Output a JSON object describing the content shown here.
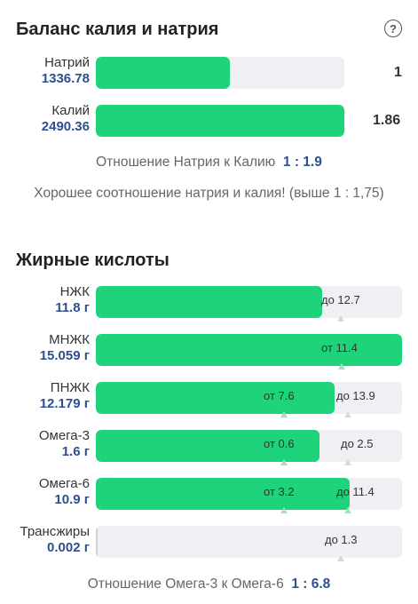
{
  "potassium_sodium": {
    "title": "Баланс калия и натрия",
    "help_glyph": "?",
    "rows": [
      {
        "name": "Натрий",
        "value": "1336.78",
        "right": "1",
        "fill_fraction": 0.54
      },
      {
        "name": "Калий",
        "value": "2490.36",
        "right": "1.86",
        "fill_fraction": 1.0
      }
    ],
    "ratio_label": "Отношение Натрия к Калию",
    "ratio_value": "1 : 1.9",
    "message": "Хорошее соотношение натрия и калия! (выше 1 : 1,75)"
  },
  "fatty_acids": {
    "title": "Жирные кислоты",
    "rows": [
      {
        "name": "НЖК",
        "value": "11.8 г",
        "fill_fraction": 0.74,
        "marks": [
          "до 12.7"
        ]
      },
      {
        "name": "МНЖК",
        "value": "15.059 г",
        "fill_fraction": 1.0,
        "marks": [
          "от 11.4"
        ]
      },
      {
        "name": "ПНЖК",
        "value": "12.179 г",
        "fill_fraction": 0.78,
        "marks": [
          "от 7.6",
          "до 13.9"
        ]
      },
      {
        "name": "Омега-3",
        "value": "1.6 г",
        "fill_fraction": 0.73,
        "marks": [
          "от 0.6",
          "до 2.5"
        ]
      },
      {
        "name": "Омега-6",
        "value": "10.9 г",
        "fill_fraction": 0.83,
        "marks": [
          "от 3.2",
          "до 11.4"
        ]
      },
      {
        "name": "Трансжиры",
        "value": "0.002 г",
        "fill_fraction": 0.003,
        "marks": [
          "до 1.3"
        ]
      }
    ],
    "ratio_label": "Отношение Омега-3 к Омега-6",
    "ratio_value": "1 : 6.8"
  }
}
